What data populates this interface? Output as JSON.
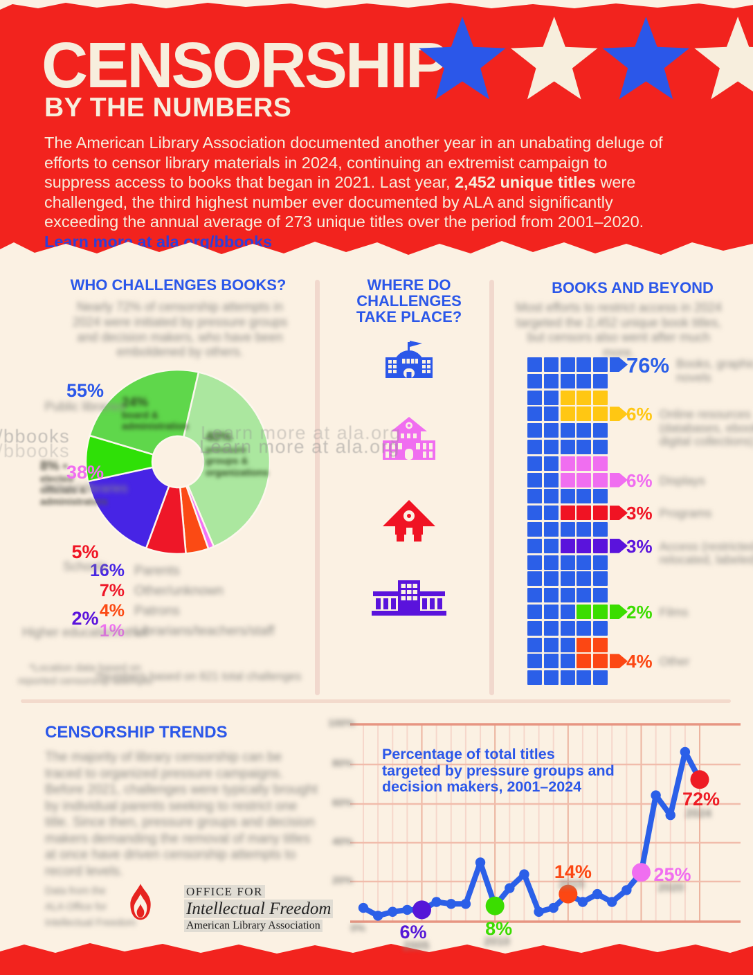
{
  "colors": {
    "red": "#f2231e",
    "cream": "#fbf1e3",
    "cream_text": "#f7eedd",
    "blue": "#2b57e9",
    "link_blue": "#2f3fd8",
    "grid_pink_light": "#f6d7cb",
    "grid_pink_dark": "#e79582"
  },
  "header": {
    "title": "CENSORSHIP",
    "subtitle": "BY THE NUMBERS",
    "intro": {
      "pre": "The American Library Association documented another year in an unabating deluge of efforts to censor library materials in 2024, continuing an extremist campaign to suppress access to books that began in 2021. Last year, ",
      "bold": "2,452 unique titles",
      "mid": " were challenged, the third highest number ever documented by ALA and significantly exceeding the annual average of 273 unique titles over the period from 2001–2020. ",
      "link": "Learn more at ala.org/bbooks"
    },
    "star_colors": [
      "#2b57e9",
      "#f7eedd",
      "#2b57e9",
      "#f7eedd"
    ]
  },
  "watermark": {
    "text_left": "/bbooks",
    "text_main": "Learn more at ala.org"
  },
  "who": {
    "title": "WHO CHALLENGES BOOKS?",
    "intro_blurred": "Nearly 72% of censorship attempts in 2024 were initiated by pressure groups and decision makers, who have been emboldened by others.",
    "in_pie_labels": {
      "light_green_blurred": "40%\npressure\ngroups &\norganizations",
      "medium_green_blurred": "24%\nboard &\nadministration",
      "bright_green_blurred": "8% ▪\nelected\nofficials &\nadministrators"
    },
    "legend": [
      {
        "pct": "16%",
        "label_blurred": "Parents",
        "color": "#4724e5"
      },
      {
        "pct": "7%",
        "label_blurred": "Other/unknown",
        "color": "#ee1728"
      },
      {
        "pct": "4%",
        "label_blurred": "Patrons",
        "color": "#fb4a14"
      },
      {
        "pct": "1%",
        "label_blurred": "Librarians/teachers/staff",
        "color": "#f271f5"
      }
    ],
    "footnote_blurred": "*Numbers based on 821 total challenges"
  },
  "where": {
    "title": "WHERE DO\nCHALLENGES\nTAKE PLACE?",
    "items": [
      {
        "pct": "55%",
        "label_blurred": "Public libraries",
        "color": "#2b57e9",
        "icon": "public-library"
      },
      {
        "pct": "38%",
        "label_blurred": "School libraries",
        "color": "#f06ef0",
        "icon": "school-library"
      },
      {
        "pct": "5%",
        "label_blurred": "Schools",
        "color": "#f01323",
        "icon": "schoolhouse"
      },
      {
        "pct": "2%",
        "label_blurred": "Higher education/other",
        "color": "#5a13dc",
        "icon": "higher-education"
      }
    ],
    "footnote_blurred": "*Location data based on\nreported censorship attempts"
  },
  "beyond": {
    "title": "BOOKS AND BEYOND",
    "intro_blurred": "Most efforts to restrict access in 2024 targeted the 2,452 unique book titles, but censors also went after much more.",
    "waffle": {
      "palette": {
        "B": "#2b5fe8",
        "Y": "#ffc713",
        "P": "#f06ef0",
        "R": "#f01323",
        "I": "#5a13dc",
        "G": "#3bdd00",
        "O": "#fc4713"
      },
      "rows": [
        "BBBBB",
        "BBBBB",
        "BBYYY",
        "BBYYY",
        "BBBBB",
        "BBBBB",
        "BBPPP",
        "BBPPP",
        "BBBBB",
        "BBRRR",
        "BBBBB",
        "BBIII",
        "BBBBB",
        "BBBBB",
        "BBBBB",
        "BBBGG",
        "BBBBB",
        "BBBOO",
        "BBBOO",
        "BBBBB"
      ],
      "arrows": [
        {
          "row": 0,
          "c": "B"
        },
        {
          "row": 3,
          "c": "Y"
        },
        {
          "row": 7,
          "c": "P"
        },
        {
          "row": 9,
          "c": "R"
        },
        {
          "row": 11,
          "c": "I"
        },
        {
          "row": 15,
          "c": "G"
        },
        {
          "row": 18,
          "c": "O"
        }
      ],
      "legend": [
        {
          "row": 0,
          "pct": "76%",
          "c": "B",
          "big": true,
          "label_blurred": "Books, graphic novels"
        },
        {
          "row": 3,
          "pct": "6%",
          "c": "Y",
          "label_blurred": "Online resources (databases, ebooks, digital collections)"
        },
        {
          "row": 7,
          "pct": "6%",
          "c": "P",
          "label_blurred": "Displays"
        },
        {
          "row": 9,
          "pct": "3%",
          "c": "R",
          "label_blurred": "Programs"
        },
        {
          "row": 11,
          "pct": "3%",
          "c": "I",
          "label_blurred": "Access (restricted, relocated, labeled)"
        },
        {
          "row": 15,
          "pct": "2%",
          "c": "G",
          "label_blurred": "Films"
        },
        {
          "row": 18,
          "pct": "4%",
          "c": "O",
          "label_blurred": "Other"
        }
      ]
    }
  },
  "trends": {
    "title": "CENSORSHIP TRENDS",
    "body_blurred": "The majority of library censorship can be traced to organized pressure campaigns. Before 2021, challenges were typically brought by individual parents seeking to restrict one title. Since then, pressure groups and decision makers demanding the removal of many titles at once have driven censorship attempts to record levels.",
    "credit_blurred": "Data from the\nALA Office for\nIntellectual Freedom",
    "logo": {
      "line1": "OFFICE FOR",
      "line2": "Intellectual Freedom",
      "line3": "American Library Association"
    },
    "chart": {
      "title": "Percentage of total titles\ntargeted by pressure groups and\ndecision makers, 2001–2024",
      "y_axis_labels_blurred": [
        "100%",
        "80%",
        "60%",
        "40%",
        "20%"
      ],
      "y_zero_label_blurred": "0%",
      "line_color": "#2b5fe8"
    }
  },
  "chart_data": [
    {
      "type": "pie",
      "title": "WHO CHALLENGES BOOKS?",
      "note": "donut chart; slice text labels blurred in source, green slice values estimated from arc angles; greens sum to 72%",
      "start_angle_deg": 13,
      "slices": [
        {
          "label": "Pressure groups / organizations (blurred)",
          "value": 40,
          "color": "#abe79f"
        },
        {
          "label": "Librarians/teachers/staff (blurred)",
          "value": 1,
          "color": "#f271f5"
        },
        {
          "label": "Patrons (blurred)",
          "value": 4,
          "color": "#fb4a14"
        },
        {
          "label": "Other/unknown (blurred)",
          "value": 7,
          "color": "#ee1728"
        },
        {
          "label": "Parents (blurred)",
          "value": 16,
          "color": "#4724e5"
        },
        {
          "label": "Elected officials (blurred)",
          "value": 8,
          "color": "#2fe007"
        },
        {
          "label": "Board/administration (blurred)",
          "value": 24,
          "color": "#5fd74b"
        }
      ]
    },
    {
      "type": "pictogram",
      "title": "WHERE DO CHALLENGES TAKE PLACE?",
      "categories": [
        "Public libraries (blurred)",
        "School libraries (blurred)",
        "Schools (blurred)",
        "Higher education/other (blurred)"
      ],
      "values": [
        55,
        38,
        5,
        2
      ]
    },
    {
      "type": "waffle",
      "title": "BOOKS AND BEYOND",
      "note": "5 x 20 grid, 100 squares, labels blurred in source",
      "categories": [
        "Books, graphic novels",
        "Online resources",
        "Displays",
        "Programs",
        "Access",
        "Films",
        "Other"
      ],
      "values": [
        76,
        6,
        6,
        3,
        3,
        2,
        4
      ]
    },
    {
      "type": "line",
      "title": "Percentage of total titles targeted by pressure groups and decision makers, 2001–2024",
      "x": [
        2001,
        2002,
        2003,
        2004,
        2005,
        2006,
        2007,
        2008,
        2009,
        2010,
        2011,
        2012,
        2013,
        2014,
        2015,
        2016,
        2017,
        2018,
        2019,
        2020,
        2021,
        2022,
        2023,
        2024
      ],
      "y": [
        7,
        3,
        5,
        6,
        6,
        10,
        9,
        9,
        30,
        8,
        17,
        24,
        5,
        7,
        14,
        10,
        14,
        10,
        16,
        25,
        64,
        54,
        86,
        72
      ],
      "ylim": [
        0,
        100
      ],
      "grid": true,
      "note": "unlabeled values estimated from gridlines; year tick labels blurred in source",
      "highlights": [
        {
          "year": 2005,
          "label": "6%",
          "year_label_blurred": "2005",
          "color": "#5517d8"
        },
        {
          "year": 2010,
          "label": "8%",
          "year_label_blurred": "2010",
          "color": "#3bdd00"
        },
        {
          "year": 2015,
          "label": "14%",
          "year_label_blurred": "2015",
          "color": "#fc4713"
        },
        {
          "year": 2020,
          "label": "25%",
          "year_label_blurred": "2020",
          "color": "#f06ef0"
        },
        {
          "year": 2024,
          "label": "72%",
          "year_label_blurred": "2024",
          "color": "#ee1c24"
        }
      ]
    }
  ]
}
